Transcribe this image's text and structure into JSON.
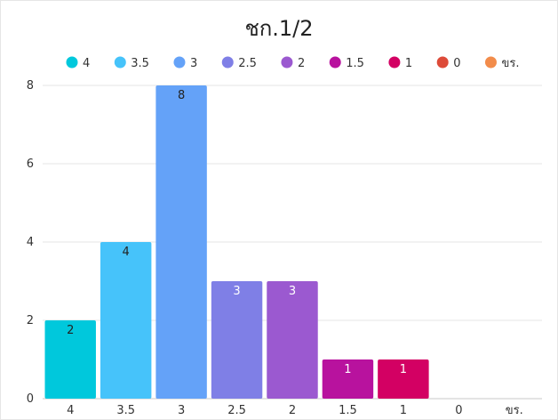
{
  "chart_data": {
    "type": "bar",
    "title": "ชก.1/2",
    "categories": [
      "4",
      "3.5",
      "3",
      "2.5",
      "2",
      "1.5",
      "1",
      "0",
      "ขร."
    ],
    "values": [
      2,
      4,
      8,
      3,
      3,
      1,
      1,
      0,
      0
    ],
    "colors": [
      "#00c8dc",
      "#46c3fa",
      "#64a2f8",
      "#7f7fe6",
      "#9b59d0",
      "#b8129e",
      "#d30063",
      "#dd4b39",
      "#f28c4b"
    ],
    "label_colors": [
      "#222222",
      "#222222",
      "#222222",
      "#ffffff",
      "#ffffff",
      "#ffffff",
      "#ffffff",
      "#ffffff",
      "#ffffff"
    ],
    "ylim": [
      0,
      8
    ],
    "yticks": [
      0,
      2,
      4,
      6,
      8
    ],
    "grid": true,
    "legend_position": "top"
  }
}
